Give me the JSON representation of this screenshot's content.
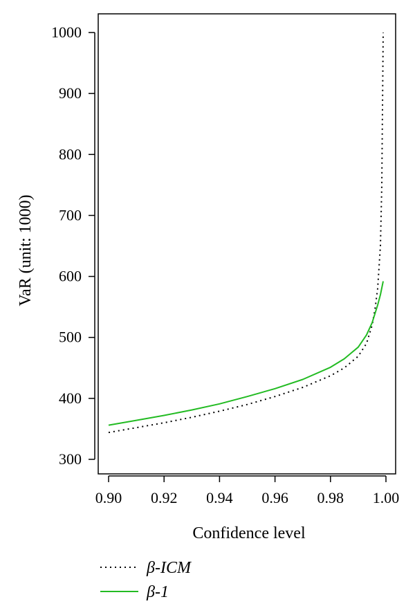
{
  "chart_data": {
    "type": "line",
    "title": "",
    "xlabel": "Confidence level",
    "ylabel": "VaR (unit: 1000)",
    "xlim": [
      0.9,
      1.0
    ],
    "ylim": [
      300,
      1000
    ],
    "x_ticks": [
      "0.90",
      "0.92",
      "0.94",
      "0.96",
      "0.98",
      "1.00"
    ],
    "y_ticks": [
      "300",
      "400",
      "500",
      "600",
      "700",
      "800",
      "900",
      "1000"
    ],
    "legend_position": "bottom-left",
    "series": [
      {
        "name": "β-ICM",
        "style": "dotted",
        "color": "#000000",
        "x": [
          0.9,
          0.91,
          0.92,
          0.93,
          0.94,
          0.95,
          0.96,
          0.97,
          0.98,
          0.985,
          0.99,
          0.993,
          0.995,
          0.996,
          0.997,
          0.998,
          0.9985,
          0.999
        ],
        "y": [
          344,
          352,
          360,
          369,
          379,
          390,
          403,
          418,
          437,
          450,
          469,
          490,
          520,
          545,
          580,
          650,
          750,
          1000
        ]
      },
      {
        "name": "β-1",
        "style": "solid",
        "color": "#22bb22",
        "x": [
          0.9,
          0.91,
          0.92,
          0.93,
          0.94,
          0.95,
          0.96,
          0.97,
          0.98,
          0.985,
          0.99,
          0.993,
          0.995,
          0.997,
          0.998,
          0.999
        ],
        "y": [
          356,
          364,
          372,
          381,
          391,
          403,
          416,
          431,
          451,
          465,
          484,
          504,
          524,
          553,
          570,
          592
        ]
      }
    ]
  }
}
